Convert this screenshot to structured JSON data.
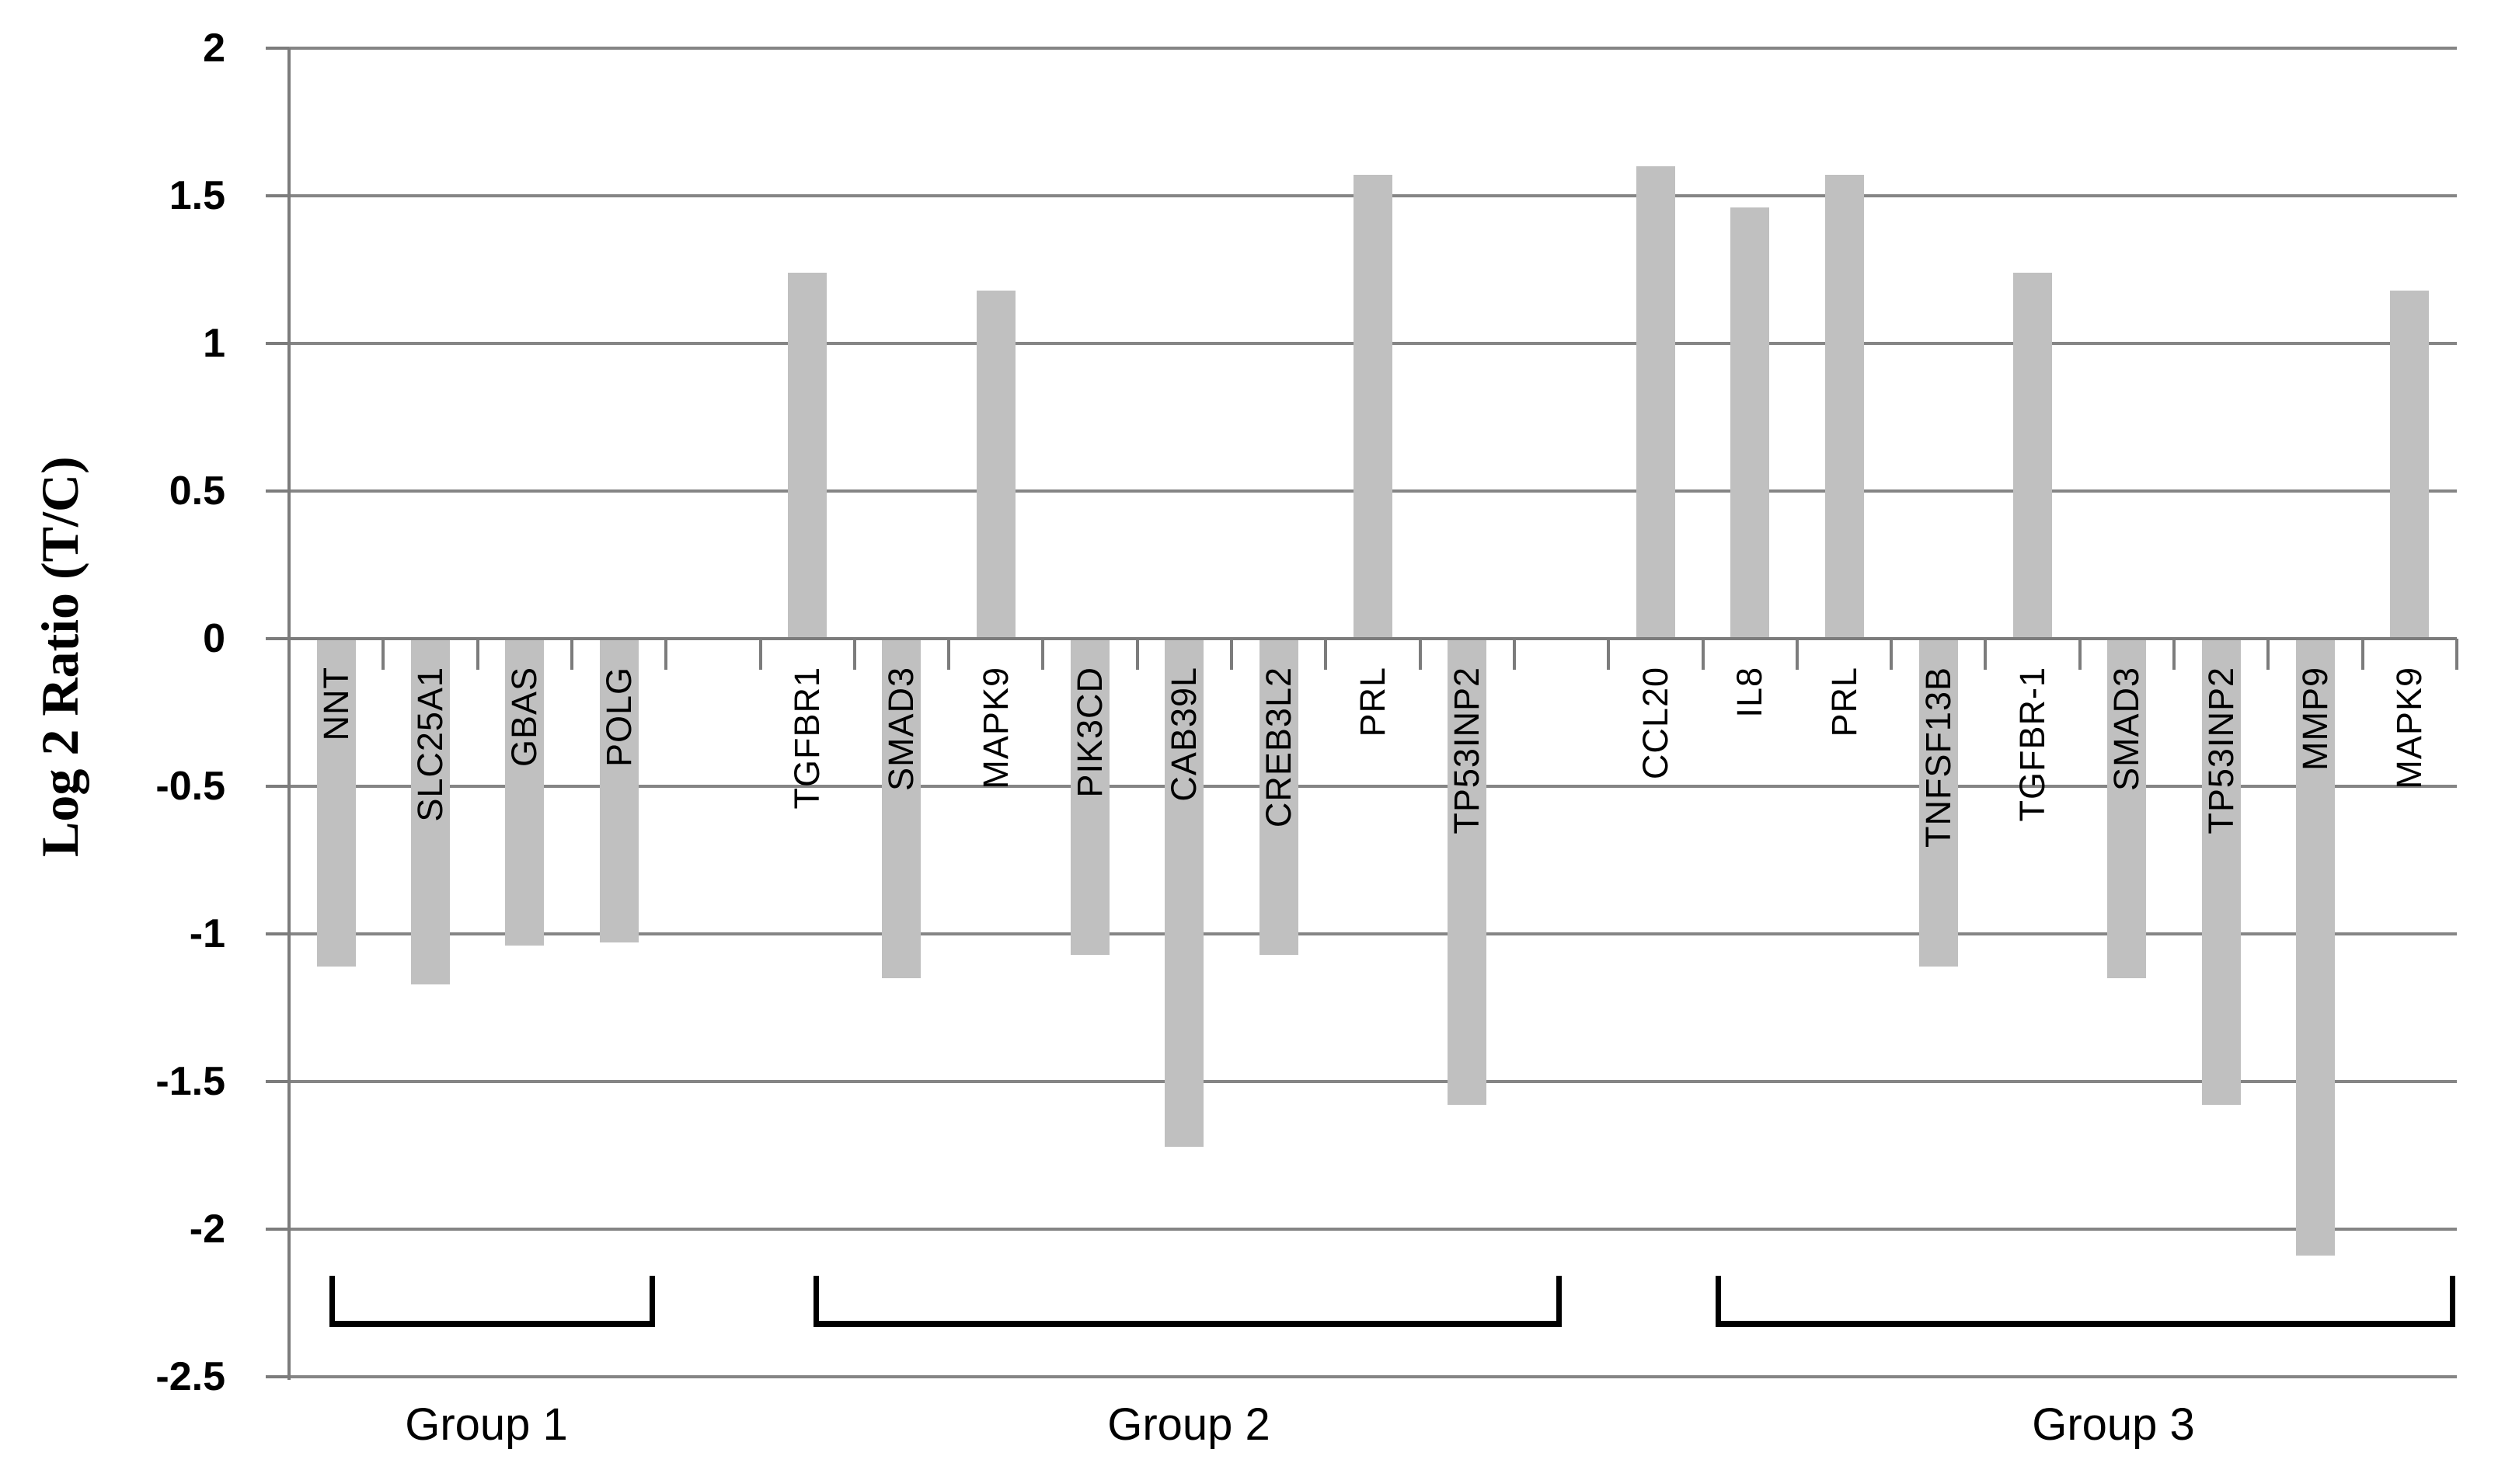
{
  "chart_data": {
    "type": "bar",
    "title": "",
    "xlabel": "",
    "ylabel": "Log 2 Ratio (T/C)",
    "ylim": [
      -2.5,
      2
    ],
    "ytick_step": 0.5,
    "yticks": [
      2,
      1.5,
      1,
      0.5,
      0,
      -0.5,
      -1,
      -1.5,
      -2,
      -2.5
    ],
    "grid": "horizontal",
    "legend": "none",
    "bar_color": "#c0c0c0",
    "gridline_color": "#858585",
    "axis_color": "#7c7c7c",
    "bracket_color": "#000000",
    "text_color": "#000000",
    "groups": [
      {
        "label": "Group 1",
        "categories": [
          "NNT",
          "SLC25A1",
          "GBAS",
          "POLG"
        ],
        "values": [
          -1.11,
          -1.17,
          -1.04,
          -1.03
        ]
      },
      {
        "label": "Group 2",
        "categories": [
          "TGFBR1",
          "SMAD3",
          "MAPK9",
          "PIK3CD",
          "CAB39L",
          "CREB3L2",
          "PRL",
          "TP53INP2"
        ],
        "values": [
          1.24,
          -1.15,
          1.18,
          -1.07,
          -1.72,
          -1.07,
          1.57,
          -1.58
        ]
      },
      {
        "label": "Group 3",
        "categories": [
          "CCL20",
          "IL8",
          "PRL",
          "TNFSF13B",
          "TGFBR-1",
          "SMAD3",
          "TP53INP2",
          "MMP9",
          "MAPK9"
        ],
        "values": [
          1.6,
          1.46,
          1.57,
          -1.11,
          1.24,
          -1.15,
          -1.58,
          -2.09,
          1.18
        ]
      }
    ]
  }
}
